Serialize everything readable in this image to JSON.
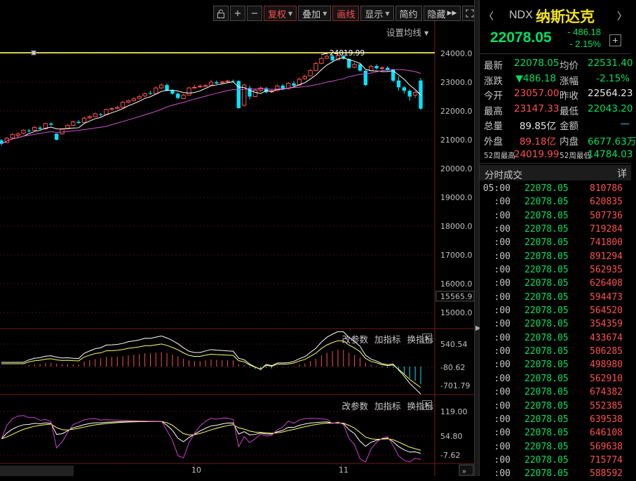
{
  "toolbar": {
    "lock_icon": "lock-icon",
    "zoom_in": "+",
    "zoom_out": "−",
    "adjust": "复权",
    "overlay": "叠加",
    "draw": "画线",
    "display": "显示",
    "simple": "简约",
    "hide": "隐藏",
    "more": "▸▸",
    "fullscreen_icon": "fullscreen-icon"
  },
  "main_chart": {
    "ma_setting": "设置均线 ▾",
    "high_marker": "24019.99",
    "y_ticks": [
      "24000.0",
      "23000.0",
      "22000.0",
      "21000.0",
      "20000.0",
      "19000.0",
      "18000.0",
      "17000.0",
      "16000.0",
      "15565.9",
      "15000.0"
    ],
    "x_ticks": [
      "10",
      "11"
    ]
  },
  "indicator1": {
    "links": [
      "改参数",
      "加指标",
      "换指标"
    ],
    "y_ticks": [
      "540.54",
      "-80.62",
      "-701.79"
    ]
  },
  "indicator2": {
    "links": [
      "改参数",
      "加指标",
      "换指标"
    ],
    "y_ticks": [
      "119.00",
      "54.80",
      "-7.62"
    ]
  },
  "quote": {
    "code": "NDX",
    "name": "纳斯达克",
    "price": "22078.05",
    "change": "- 486.18",
    "pct": "- 2.15%",
    "rows": [
      {
        "l1": "最新",
        "v1": "22078.05",
        "c1": "green",
        "l2": "均价",
        "v2": "22531.40",
        "c2": "green"
      },
      {
        "l1": "涨跌",
        "v1": "▼486.18",
        "c1": "green",
        "l2": "涨幅",
        "v2": "-2.15%",
        "c2": "green"
      },
      {
        "l1": "今开",
        "v1": "23057.00",
        "c1": "red",
        "l2": "昨收",
        "v2": "22564.23",
        "c2": "white"
      },
      {
        "l1": "最高",
        "v1": "23147.33",
        "c1": "red",
        "l2": "最低",
        "v2": "22043.20",
        "c2": "green"
      },
      {
        "l1": "总量",
        "v1": "89.85亿",
        "c1": "white",
        "l2": "金额",
        "v2": "—",
        "c2": "cyan"
      },
      {
        "l1": "外盘",
        "v1": "89.18亿",
        "c1": "red",
        "l2": "内盘",
        "v2": "6677.63万",
        "c2": "green"
      },
      {
        "l1": "52周最高",
        "v1": "24019.99",
        "c1": "red",
        "l2": "52周最低",
        "v2": "14784.03",
        "c2": "green"
      }
    ]
  },
  "ticks": {
    "title": "分时成交",
    "detail": "详",
    "rows": [
      {
        "time": "05:00",
        "price": "22078.05",
        "vol": "810786"
      },
      {
        "time": ":00",
        "price": "22078.05",
        "vol": "620835"
      },
      {
        "time": ":00",
        "price": "22078.05",
        "vol": "507736"
      },
      {
        "time": ":00",
        "price": "22078.05",
        "vol": "719284"
      },
      {
        "time": ":00",
        "price": "22078.05",
        "vol": "741800"
      },
      {
        "time": ":00",
        "price": "22078.05",
        "vol": "891294"
      },
      {
        "time": ":00",
        "price": "22078.05",
        "vol": "562935"
      },
      {
        "time": ":00",
        "price": "22078.05",
        "vol": "626408"
      },
      {
        "time": ":00",
        "price": "22078.05",
        "vol": "594473"
      },
      {
        "time": ":00",
        "price": "22078.05",
        "vol": "564520"
      },
      {
        "time": ":00",
        "price": "22078.05",
        "vol": "354359"
      },
      {
        "time": ":00",
        "price": "22078.05",
        "vol": "433674"
      },
      {
        "time": ":00",
        "price": "22078.05",
        "vol": "506285"
      },
      {
        "time": ":00",
        "price": "22078.05",
        "vol": "498980"
      },
      {
        "time": ":00",
        "price": "22078.05",
        "vol": "562910"
      },
      {
        "time": ":00",
        "price": "22078.05",
        "vol": "674382"
      },
      {
        "time": ":00",
        "price": "22078.05",
        "vol": "552385"
      },
      {
        "time": ":00",
        "price": "22078.05",
        "vol": "639538"
      },
      {
        "time": ":00",
        "price": "22078.05",
        "vol": "646108"
      },
      {
        "time": ":00",
        "price": "22078.05",
        "vol": "569638"
      },
      {
        "time": ":00",
        "price": "22078.05",
        "vol": "715774"
      },
      {
        "time": ":00",
        "price": "22078.05",
        "vol": "588592"
      }
    ]
  },
  "colors": {
    "up": "#ff5050",
    "down": "#00e5ff",
    "ma5": "#ffffff",
    "ma10": "#ffff60",
    "ma20": "#d050d0",
    "highline": "#ffff60"
  }
}
